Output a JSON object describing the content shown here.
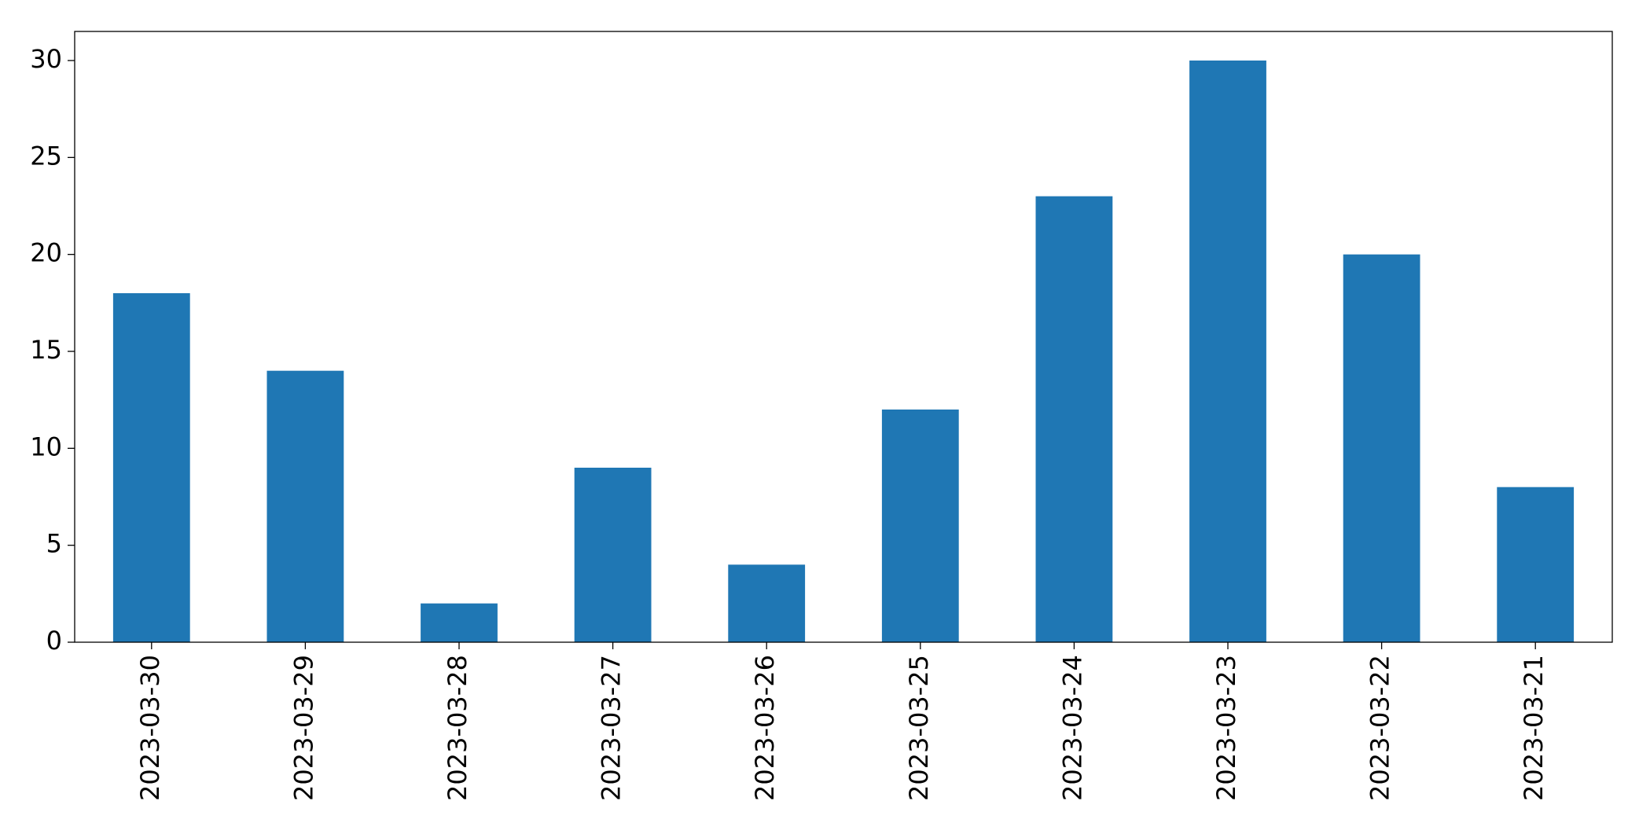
{
  "chart_data": {
    "type": "bar",
    "categories": [
      "2023-03-30",
      "2023-03-29",
      "2023-03-28",
      "2023-03-27",
      "2023-03-26",
      "2023-03-25",
      "2023-03-24",
      "2023-03-23",
      "2023-03-22",
      "2023-03-21"
    ],
    "values": [
      18,
      14,
      2,
      9,
      4,
      12,
      23,
      30,
      20,
      8
    ],
    "color": "#1f77b4",
    "ylim": [
      0,
      31.5
    ],
    "yticks": [
      0,
      5,
      10,
      15,
      20,
      25,
      30
    ],
    "grid": false
  }
}
